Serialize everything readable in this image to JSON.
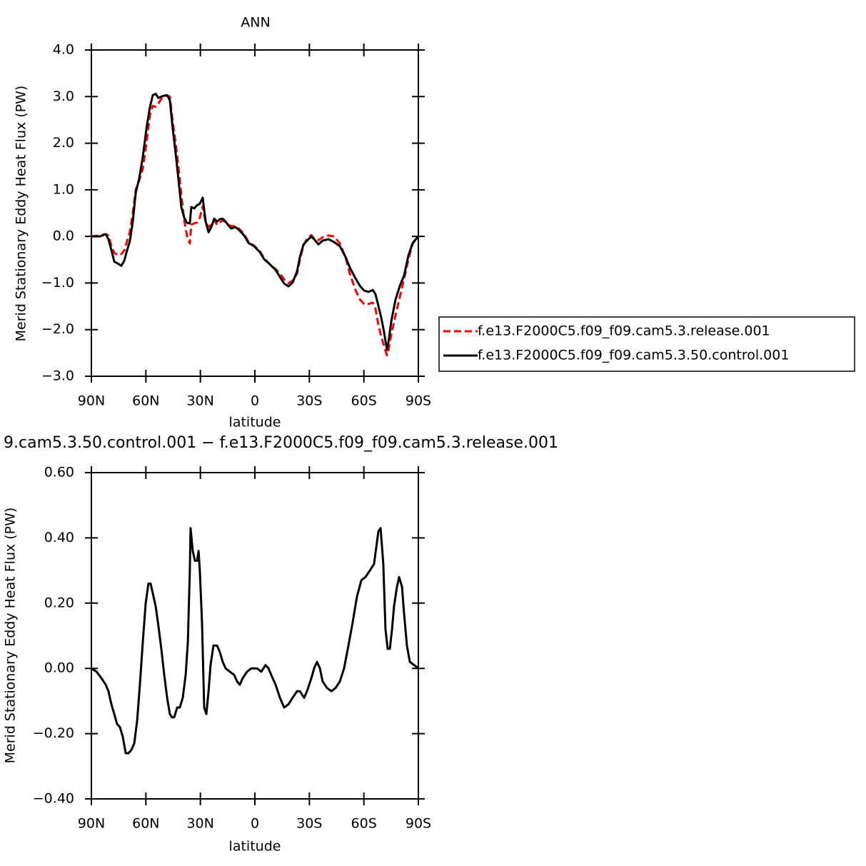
{
  "chart_data": [
    {
      "type": "line",
      "title": "ANN",
      "xlabel": "latitude",
      "ylabel": "Merid Stationary Eddy Heat Flux (PW)",
      "xlim": [
        90,
        -90
      ],
      "ylim": [
        -3,
        4
      ],
      "xticks": [
        {
          "value": 90,
          "label": "90N"
        },
        {
          "value": 60,
          "label": "60N"
        },
        {
          "value": 30,
          "label": "30N"
        },
        0,
        {
          "value": -30,
          "label": "30S"
        },
        {
          "value": -60,
          "label": "60S"
        },
        {
          "value": -90,
          "label": "90S"
        }
      ],
      "yticks": [
        {
          "value": 4,
          "label": "4.0"
        },
        {
          "value": 3,
          "label": "3.0"
        },
        {
          "value": 2,
          "label": "2.0"
        },
        {
          "value": 1,
          "label": "1.0"
        },
        {
          "value": 0,
          "label": "0.0"
        },
        {
          "value": -1,
          "label": "−1.0"
        },
        {
          "value": -2,
          "label": "−2.0"
        },
        {
          "value": -3,
          "label": "−3.0"
        }
      ],
      "legend": "right",
      "x": [
        90,
        85.3,
        82.1,
        80.6,
        79.0,
        77.4,
        75.5,
        73.5,
        71.9,
        70.3,
        68.8,
        67.2,
        65.6,
        63.7,
        61.7,
        59.7,
        57.8,
        56.2,
        54.6,
        53.1,
        51.5,
        49.9,
        48.3,
        46.8,
        45.2,
        43.6,
        42.1,
        40.5,
        38.9,
        37.3,
        35.8,
        35.0,
        33.4,
        31.8,
        30.3,
        28.7,
        27.1,
        25.5,
        24.0,
        22.4,
        20.8,
        19.3,
        17.7,
        16.1,
        14.5,
        13.0,
        10.6,
        8.3,
        5.9,
        3.5,
        0.4,
        -2.8,
        -5.1,
        -8.3,
        -11.4,
        -13.8,
        -16.1,
        -18.5,
        -20.8,
        -23.2,
        -24.8,
        -26.7,
        -28.7,
        -31.1,
        -32.6,
        -35.0,
        -37.3,
        -40.5,
        -43.6,
        -46.8,
        -49.9,
        -52.3,
        -55.4,
        -57.8,
        -60.1,
        -62.5,
        -64.9,
        -66.4,
        -68.0,
        -69.6,
        -71.1,
        -72.7,
        -73.5,
        -75.1,
        -77.4,
        -79.8,
        -82.2,
        -84.5,
        -86.9,
        -90
      ],
      "series": [
        {
          "name": "f.e13.F2000C5.f09_f09.cam5.3.release.001",
          "color": "#ff0000",
          "linestyle": "dashed",
          "values": [
            0,
            0.02,
            0.05,
            0.02,
            -0.2,
            -0.35,
            -0.4,
            -0.38,
            -0.3,
            -0.1,
            0.1,
            0.5,
            1.0,
            1.2,
            1.45,
            2.0,
            2.6,
            2.8,
            2.78,
            2.85,
            2.95,
            3.0,
            3.02,
            3.0,
            2.45,
            2.0,
            1.5,
            0.9,
            0.35,
            0.0,
            -0.15,
            0.25,
            0.28,
            0.3,
            0.4,
            0.65,
            0.3,
            0.2,
            0.25,
            0.35,
            0.25,
            0.3,
            0.35,
            0.3,
            0.25,
            0.22,
            0.22,
            0.15,
            0.05,
            -0.12,
            -0.2,
            -0.32,
            -0.47,
            -0.6,
            -0.7,
            -0.8,
            -0.92,
            -1.0,
            -0.95,
            -0.8,
            -0.5,
            -0.2,
            -0.05,
            0.03,
            -0.05,
            -0.08,
            -0.02,
            0.02,
            0.0,
            -0.15,
            -0.45,
            -0.8,
            -1.15,
            -1.35,
            -1.45,
            -1.45,
            -1.42,
            -1.55,
            -1.9,
            -2.15,
            -2.35,
            -2.55,
            -2.45,
            -2.1,
            -1.7,
            -1.3,
            -0.9,
            -0.5,
            -0.15,
            0
          ]
        },
        {
          "name": "f.e13.F2000C5.f09_f09.cam5.3.50.control.001",
          "color": "#000000",
          "linestyle": "solid",
          "values": [
            0,
            0.0,
            0.05,
            -0.06,
            -0.29,
            -0.54,
            -0.58,
            -0.63,
            -0.52,
            -0.29,
            -0.1,
            0.32,
            0.93,
            1.24,
            1.7,
            2.31,
            2.77,
            3.03,
            3.06,
            2.97,
            3.0,
            3.02,
            3.03,
            2.92,
            2.31,
            1.78,
            1.24,
            0.63,
            0.4,
            0.29,
            0.28,
            0.63,
            0.6,
            0.67,
            0.7,
            0.83,
            0.32,
            0.09,
            0.2,
            0.38,
            0.32,
            0.37,
            0.38,
            0.32,
            0.23,
            0.17,
            0.2,
            0.12,
            0.02,
            -0.14,
            -0.21,
            -0.34,
            -0.49,
            -0.6,
            -0.72,
            -0.87,
            -1.01,
            -1.07,
            -0.99,
            -0.75,
            -0.44,
            -0.18,
            -0.09,
            0,
            -0.06,
            -0.17,
            -0.09,
            -0.06,
            -0.12,
            -0.21,
            -0.44,
            -0.67,
            -0.9,
            -1.06,
            -1.16,
            -1.19,
            -1.15,
            -1.24,
            -1.49,
            -1.75,
            -2.05,
            -2.43,
            -2.28,
            -1.82,
            -1.36,
            -1.06,
            -0.83,
            -0.41,
            -0.14,
            0
          ]
        }
      ]
    },
    {
      "type": "line",
      "title": "9.cam5.3.50.control.001 − f.e13.F2000C5.f09_f09.cam5.3.release.001",
      "xlabel": "latitude",
      "ylabel": "Merid Stationary Eddy Heat Flux (PW)",
      "xlim": [
        90,
        -90
      ],
      "ylim": [
        -0.4,
        0.6
      ],
      "xticks": [
        {
          "value": 90,
          "label": "90N"
        },
        {
          "value": 60,
          "label": "60N"
        },
        {
          "value": 30,
          "label": "30N"
        },
        0,
        {
          "value": -30,
          "label": "30S"
        },
        {
          "value": -60,
          "label": "60S"
        },
        {
          "value": -90,
          "label": "90S"
        }
      ],
      "yticks": [
        {
          "value": 0.6,
          "label": "0.60"
        },
        {
          "value": 0.4,
          "label": "0.40"
        },
        {
          "value": 0.2,
          "label": "0.20"
        },
        {
          "value": 0,
          "label": "0.00"
        },
        {
          "value": -0.2,
          "label": "−0.20"
        },
        {
          "value": -0.4,
          "label": "−0.40"
        }
      ],
      "x": [
        90,
        87.2,
        84.5,
        82.1,
        80.6,
        79.0,
        77.4,
        75.9,
        74.3,
        72.7,
        71.1,
        69.6,
        68.0,
        66.4,
        64.8,
        63.3,
        61.7,
        60.1,
        58.6,
        57.4,
        56.2,
        54.6,
        53.1,
        51.5,
        49.9,
        48.3,
        46.8,
        45.6,
        44.4,
        42.8,
        41.3,
        39.7,
        38.1,
        36.9,
        35.8,
        35.4,
        34.2,
        33.0,
        31.8,
        31.0,
        30.3,
        29.1,
        27.9,
        26.7,
        25.5,
        24.4,
        22.8,
        20.8,
        19.3,
        17.7,
        16.1,
        13.8,
        11.4,
        9.8,
        8.3,
        6.7,
        4.3,
        2.0,
        -1.2,
        -3.5,
        -5.9,
        -7.5,
        -9.0,
        -11.4,
        -13.8,
        -16.1,
        -18.5,
        -20.8,
        -23.2,
        -24.8,
        -27.1,
        -28.7,
        -31.1,
        -32.6,
        -34.2,
        -35.8,
        -37.3,
        -39.7,
        -42.1,
        -44.4,
        -46.8,
        -49.1,
        -51.5,
        -53.8,
        -56.2,
        -58.6,
        -60.9,
        -63.3,
        -65.6,
        -68.0,
        -69.2,
        -70.7,
        -71.9,
        -73.1,
        -74.3,
        -75.5,
        -76.6,
        -78.2,
        -79.4,
        -81.0,
        -82.1,
        -83.7,
        -85.3,
        -87.7,
        -90
      ],
      "series": [
        {
          "color": "#000000",
          "linestyle": "solid",
          "values": [
            0,
            -0.01,
            -0.03,
            -0.05,
            -0.07,
            -0.11,
            -0.14,
            -0.17,
            -0.18,
            -0.21,
            -0.26,
            -0.26,
            -0.25,
            -0.23,
            -0.16,
            -0.05,
            0.08,
            0.2,
            0.26,
            0.26,
            0.23,
            0.19,
            0.13,
            0.06,
            -0.02,
            -0.09,
            -0.14,
            -0.15,
            -0.15,
            -0.12,
            -0.12,
            -0.09,
            -0.02,
            0.08,
            0.3,
            0.43,
            0.36,
            0.33,
            0.33,
            0.36,
            0.3,
            0.14,
            -0.12,
            -0.14,
            -0.07,
            0.01,
            0.07,
            0.07,
            0.05,
            0.02,
            0,
            -0.01,
            -0.02,
            -0.04,
            -0.05,
            -0.03,
            -0.01,
            0,
            0,
            -0.01,
            0.01,
            0,
            -0.02,
            -0.05,
            -0.09,
            -0.12,
            -0.11,
            -0.09,
            -0.07,
            -0.07,
            -0.09,
            -0.07,
            -0.03,
            0,
            0.02,
            0,
            -0.04,
            -0.06,
            -0.07,
            -0.06,
            -0.04,
            0,
            0.07,
            0.14,
            0.22,
            0.27,
            0.28,
            0.3,
            0.32,
            0.42,
            0.43,
            0.32,
            0.12,
            0.06,
            0.06,
            0.12,
            0.19,
            0.25,
            0.28,
            0.25,
            0.17,
            0.07,
            0.02,
            0.01,
            0
          ]
        }
      ]
    }
  ]
}
